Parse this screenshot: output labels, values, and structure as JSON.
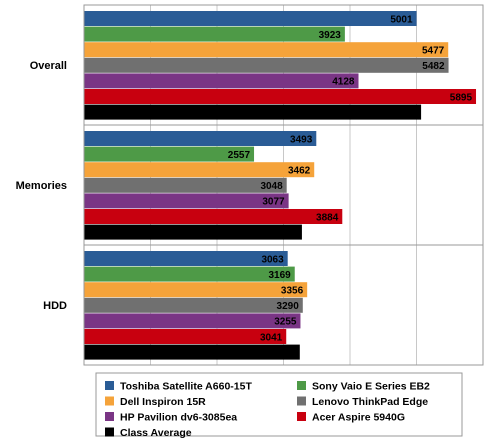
{
  "chart_data": {
    "type": "bar",
    "orientation": "horizontal",
    "categories": [
      "Overall",
      "Memories",
      "HDD"
    ],
    "series": [
      {
        "name": "Toshiba Satellite A660-15T",
        "color": "#2a5c96",
        "values": [
          5001,
          3493,
          3063
        ]
      },
      {
        "name": "Sony Vaio E Series EB2",
        "color": "#4e9a47",
        "values": [
          3923,
          2557,
          3169
        ]
      },
      {
        "name": "Dell Inspiron 15R",
        "color": "#f5a33a",
        "values": [
          5477,
          3462,
          3356
        ]
      },
      {
        "name": "Lenovo ThinkPad Edge",
        "color": "#707070",
        "values": [
          5482,
          3048,
          3290
        ]
      },
      {
        "name": "HP Pavilion dv6-3085ea",
        "color": "#7a3585",
        "values": [
          4128,
          3077,
          3255
        ]
      },
      {
        "name": "Acer Aspire 5940G",
        "color": "#c8000f",
        "values": [
          5895,
          3884,
          3041
        ]
      },
      {
        "name": "Class Average",
        "color": "#000000",
        "values": [
          5069,
          3277,
          3245
        ]
      }
    ],
    "xlim": [
      0,
      6000
    ],
    "grid": true,
    "legend_position": "bottom"
  }
}
